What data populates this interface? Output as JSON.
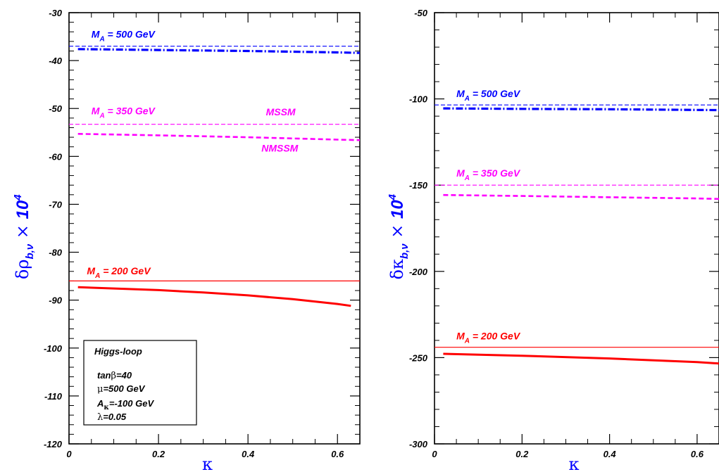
{
  "chart_data": [
    {
      "type": "line",
      "ylabel": {
        "delta": "δρ",
        "sub": "b,ν",
        "times": " × ",
        "pow": "10",
        "exp": "4"
      },
      "xlabel": "κ",
      "xlim": [
        0,
        0.65
      ],
      "ylim": [
        -120,
        -30
      ],
      "xticks": [
        0,
        0.2,
        0.4,
        0.6
      ],
      "xtick_labels": [
        "0",
        "0.2",
        "0.4",
        "0.6"
      ],
      "yticks": [
        -120,
        -110,
        -100,
        -90,
        -80,
        -70,
        -60,
        -50,
        -40,
        -30
      ],
      "ytick_labels": [
        "-120",
        "-110",
        "-100",
        "-90",
        "-80",
        "-70",
        "-60",
        "-50",
        "-40",
        "-30"
      ],
      "series": [
        {
          "group": "MA500",
          "model": "MSSM",
          "color": "#0000ff",
          "style": "thin-dashed",
          "x": [
            0,
            0.65
          ],
          "y": [
            -37.0,
            -37.0
          ]
        },
        {
          "group": "MA500",
          "model": "NMSSM",
          "color": "#0000ff",
          "style": "dash-dot",
          "x": [
            0.02,
            0.2,
            0.4,
            0.6,
            0.65
          ],
          "y": [
            -37.6,
            -37.8,
            -38.0,
            -38.3,
            -38.4
          ]
        },
        {
          "group": "MA350",
          "model": "MSSM",
          "color": "#ff00ff",
          "style": "thin-dashed",
          "x": [
            0,
            0.65
          ],
          "y": [
            -53.3,
            -53.3
          ]
        },
        {
          "group": "MA350",
          "model": "NMSSM",
          "color": "#ff00ff",
          "style": "dashed",
          "x": [
            0.02,
            0.2,
            0.4,
            0.6,
            0.65
          ],
          "y": [
            -55.3,
            -55.6,
            -56.0,
            -56.5,
            -56.6
          ]
        },
        {
          "group": "MA200",
          "model": "MSSM",
          "color": "#ff0000",
          "style": "thin-solid",
          "x": [
            0,
            0.65
          ],
          "y": [
            -86.0,
            -86.0
          ]
        },
        {
          "group": "MA200",
          "model": "NMSSM",
          "color": "#ff0000",
          "style": "thick-solid",
          "x": [
            0.02,
            0.2,
            0.3,
            0.4,
            0.5,
            0.6,
            0.63
          ],
          "y": [
            -87.3,
            -87.9,
            -88.4,
            -89.0,
            -89.8,
            -90.8,
            -91.2
          ]
        }
      ],
      "annotations": [
        {
          "kind": "ma",
          "prefix": "M",
          "sub": "A",
          "value": " = 500  GeV",
          "color": "#0000ff",
          "at": [
            0.05,
            -35.2
          ]
        },
        {
          "kind": "ma",
          "prefix": "M",
          "sub": "A",
          "value": " = 350 GeV",
          "color": "#ff00ff",
          "at": [
            0.05,
            -51.2
          ]
        },
        {
          "kind": "ma",
          "prefix": "M",
          "sub": "A",
          "value": " = 200 GeV",
          "color": "#ff0000",
          "at": [
            0.04,
            -84.6
          ]
        },
        {
          "kind": "text",
          "text": "MSSM",
          "color": "#ff00ff",
          "at": [
            0.44,
            -51.4
          ]
        },
        {
          "kind": "text",
          "text": "NMSSM",
          "color": "#ff00ff",
          "at": [
            0.43,
            -59.0
          ]
        }
      ],
      "legend_box": {
        "title": "Higgs-loop",
        "lines": [
          {
            "pre": "tan",
            "greek": "β",
            "post": "=40"
          },
          {
            "pre": "",
            "greek": "μ",
            "post": "=500 GeV"
          },
          {
            "pre": "A",
            "sub": "κ",
            "post": "=-100 GeV"
          },
          {
            "pre": "",
            "greek": "λ",
            "post": "=0.05"
          }
        ]
      }
    },
    {
      "type": "line",
      "ylabel": {
        "delta": "δκ",
        "sub": "b,ν",
        "times": " × ",
        "pow": "10",
        "exp": "4"
      },
      "xlabel": "κ",
      "xlim": [
        0,
        0.65
      ],
      "ylim": [
        -300,
        -50
      ],
      "xticks": [
        0,
        0.2,
        0.4,
        0.6
      ],
      "xtick_labels": [
        "0",
        "0.2",
        "0.4",
        "0.6"
      ],
      "yticks": [
        -300,
        -250,
        -200,
        -150,
        -100,
        -50
      ],
      "ytick_labels": [
        "-300",
        "-250",
        "-200",
        "-150",
        "-100",
        "-50"
      ],
      "series": [
        {
          "group": "MA500",
          "model": "MSSM",
          "color": "#0000ff",
          "style": "thin-dashed",
          "x": [
            0,
            0.65
          ],
          "y": [
            -103.5,
            -103.5
          ]
        },
        {
          "group": "MA500",
          "model": "NMSSM",
          "color": "#0000ff",
          "style": "dash-dot",
          "x": [
            0.02,
            0.2,
            0.4,
            0.6,
            0.65
          ],
          "y": [
            -105.5,
            -105.8,
            -106.0,
            -106.4,
            -106.5
          ]
        },
        {
          "group": "MA350",
          "model": "MSSM",
          "color": "#ff00ff",
          "style": "thin-dashed",
          "x": [
            0,
            0.65
          ],
          "y": [
            -150.0,
            -150.0
          ]
        },
        {
          "group": "MA350",
          "model": "NMSSM",
          "color": "#ff00ff",
          "style": "dashed",
          "x": [
            0.02,
            0.2,
            0.4,
            0.6,
            0.65
          ],
          "y": [
            -155.7,
            -156.3,
            -157.0,
            -157.7,
            -158.0
          ]
        },
        {
          "group": "MA200",
          "model": "MSSM",
          "color": "#ff0000",
          "style": "thin-solid",
          "x": [
            0,
            0.65
          ],
          "y": [
            -244.0,
            -244.0
          ]
        },
        {
          "group": "MA200",
          "model": "NMSSM",
          "color": "#ff0000",
          "style": "thick-solid",
          "x": [
            0.02,
            0.2,
            0.4,
            0.6,
            0.65
          ],
          "y": [
            -247.8,
            -248.9,
            -250.5,
            -252.6,
            -253.4
          ]
        }
      ],
      "annotations": [
        {
          "kind": "ma",
          "prefix": "M",
          "sub": "A",
          "value": " = 500  GeV",
          "color": "#0000ff",
          "at": [
            0.05,
            -99.0
          ]
        },
        {
          "kind": "ma",
          "prefix": "M",
          "sub": "A",
          "value": " = 350 GeV",
          "color": "#ff00ff",
          "at": [
            0.05,
            -145.0
          ]
        },
        {
          "kind": "ma",
          "prefix": "M",
          "sub": "A",
          "value": " = 200 GeV",
          "color": "#ff0000",
          "at": [
            0.05,
            -239.5
          ]
        }
      ]
    }
  ]
}
